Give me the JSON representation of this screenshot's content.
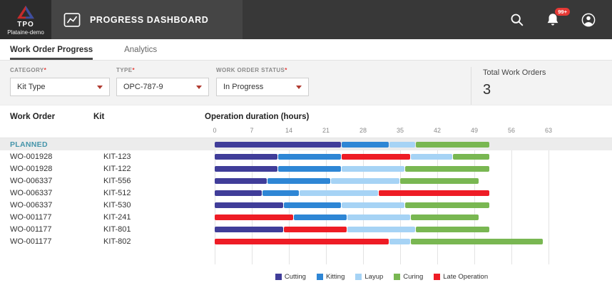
{
  "header": {
    "brand": "TPO",
    "brand_subtitle": "Plataine-demo",
    "title": "PROGRESS DASHBOARD",
    "notifications_badge": "99+",
    "icons": {
      "logo": "triangle-logo-icon",
      "title": "line-chart-icon",
      "search": "search-icon",
      "notifications": "bell-icon",
      "profile": "user-icon"
    }
  },
  "tabs": [
    {
      "label": "Work Order Progress",
      "active": true
    },
    {
      "label": "Analytics",
      "active": false
    }
  ],
  "filters": [
    {
      "label": "CATEGORY",
      "required": "*",
      "value": "Kit Type"
    },
    {
      "label": "TYPE",
      "required": "*",
      "value": "OPC-787-9"
    },
    {
      "label": "WORK ORDER STATUS",
      "required": "*",
      "value": "In Progress"
    }
  ],
  "summary": {
    "label": "Total Work Orders",
    "value": "3"
  },
  "table": {
    "columns": [
      "Work Order",
      "Kit",
      "Operation duration (hours)"
    ]
  },
  "colors": {
    "accent_red": "#E53935",
    "planned_text": "#4695AA",
    "header_bg": "#383838"
  },
  "chart_data": {
    "type": "bar",
    "orientation": "horizontal-stacked",
    "title": "Operation duration (hours)",
    "xlim": [
      0,
      63
    ],
    "x_ticks": [
      0,
      7,
      14,
      21,
      28,
      35,
      42,
      49,
      56,
      63
    ],
    "grid": true,
    "legend_position": "bottom",
    "segment_colors": {
      "cutting": "#403D99",
      "kitting": "#2E86D5",
      "layup": "#A6D3F5",
      "curing": "#79B752",
      "late": "#EE1C25"
    },
    "legend": [
      {
        "key": "cutting",
        "label": "Cutting"
      },
      {
        "key": "kitting",
        "label": "Kitting"
      },
      {
        "key": "layup",
        "label": "Layup"
      },
      {
        "key": "curing",
        "label": "Curing"
      },
      {
        "key": "late",
        "label": "Late Operation"
      }
    ],
    "rows": [
      {
        "work_order": "PLANNED",
        "kit": "",
        "highlight": true,
        "segments": [
          [
            "cutting",
            24
          ],
          [
            "kitting",
            9
          ],
          [
            "layup",
            5
          ],
          [
            "curing",
            14
          ]
        ]
      },
      {
        "work_order": "WO-001928",
        "kit": "KIT-123",
        "segments": [
          [
            "cutting",
            12
          ],
          [
            "kitting",
            12
          ],
          [
            "late",
            13
          ],
          [
            "layup",
            8
          ],
          [
            "curing",
            7
          ]
        ]
      },
      {
        "work_order": "WO-001928",
        "kit": "KIT-122",
        "segments": [
          [
            "cutting",
            12
          ],
          [
            "kitting",
            12
          ],
          [
            "layup",
            12
          ],
          [
            "curing",
            16
          ]
        ]
      },
      {
        "work_order": "WO-006337",
        "kit": "KIT-556",
        "segments": [
          [
            "cutting",
            10
          ],
          [
            "kitting",
            12
          ],
          [
            "layup",
            13
          ],
          [
            "curing",
            15
          ]
        ]
      },
      {
        "work_order": "WO-006337",
        "kit": "KIT-512",
        "segments": [
          [
            "cutting",
            9
          ],
          [
            "kitting",
            7
          ],
          [
            "layup",
            15
          ],
          [
            "late",
            21
          ]
        ]
      },
      {
        "work_order": "WO-006337",
        "kit": "KIT-530",
        "segments": [
          [
            "cutting",
            13
          ],
          [
            "kitting",
            11
          ],
          [
            "layup",
            12
          ],
          [
            "curing",
            16
          ]
        ]
      },
      {
        "work_order": "WO-001177",
        "kit": "KIT-241",
        "segments": [
          [
            "late",
            15
          ],
          [
            "kitting",
            10
          ],
          [
            "layup",
            12
          ],
          [
            "curing",
            13
          ]
        ]
      },
      {
        "work_order": "WO-001177",
        "kit": "KIT-801",
        "segments": [
          [
            "cutting",
            13
          ],
          [
            "late",
            12
          ],
          [
            "layup",
            13
          ],
          [
            "curing",
            14
          ]
        ]
      },
      {
        "work_order": "WO-001177",
        "kit": "KIT-802",
        "segments": [
          [
            "late",
            33
          ],
          [
            "layup",
            4
          ],
          [
            "curing",
            25
          ]
        ]
      }
    ]
  }
}
